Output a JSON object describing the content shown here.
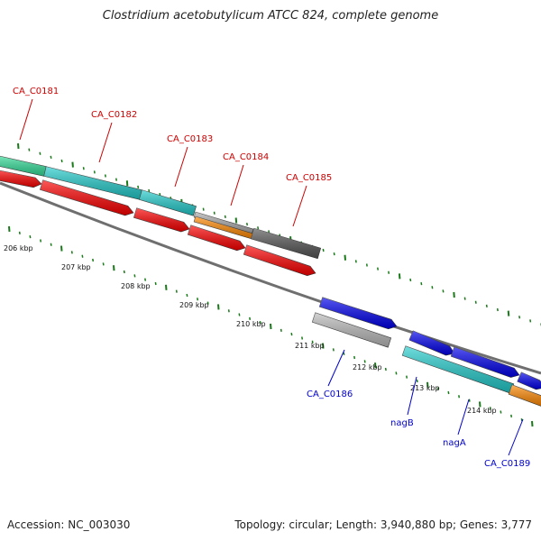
{
  "header": {
    "title": "Clostridium acetobutylicum ATCC 824, complete genome"
  },
  "footer": {
    "accession": "Accession: NC_003030",
    "topology": "Topology: circular; Length: 3,940,880 bp; Genes: 3,777"
  },
  "colors": {
    "forward_label": "#cc0000",
    "reverse_label": "#0000cc",
    "tick": "#1a7a1a",
    "backbone": "#808080"
  },
  "scale": {
    "unit": "kbp",
    "labels": [
      "206 kbp",
      "207 kbp",
      "208 kbp",
      "209 kbp",
      "210 kbp",
      "211 kbp",
      "212 kbp",
      "213 kbp",
      "214 kbp"
    ]
  },
  "genes_forward": [
    {
      "label": "CA_C0181",
      "color": "#33dd99"
    },
    {
      "label": "CA_C0182",
      "color": "#22cccc"
    },
    {
      "label": "CA_C0183",
      "color": "#22cccc"
    },
    {
      "label": "CA_C0184",
      "color": "#ff8800"
    },
    {
      "label": "CA_C0185",
      "color": "#555555"
    }
  ],
  "genes_reverse": [
    {
      "label": "CA_C0186",
      "color": "#bbbbbb"
    },
    {
      "label": "nagB",
      "color": "#22cccc"
    },
    {
      "label": "nagA",
      "color": "#22cccc"
    },
    {
      "label": "CA_C0189",
      "color": "#ff8800"
    }
  ]
}
